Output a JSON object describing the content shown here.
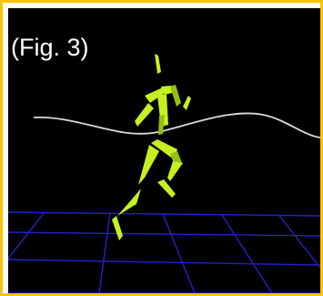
{
  "figure": {
    "label": "(Fig. 3)"
  },
  "colors": {
    "border": "#f5c400",
    "background": "#000000",
    "skeleton": "#c6f020",
    "skeleton_shade": "#94c010",
    "trajectory": "#d9d9d9",
    "grid": "#2222c8"
  },
  "scene": {
    "figure_icon": "motion-capture-skeleton",
    "trajectory_icon": "motion-trajectory-curve",
    "floor_icon": "perspective-floor-grid"
  }
}
